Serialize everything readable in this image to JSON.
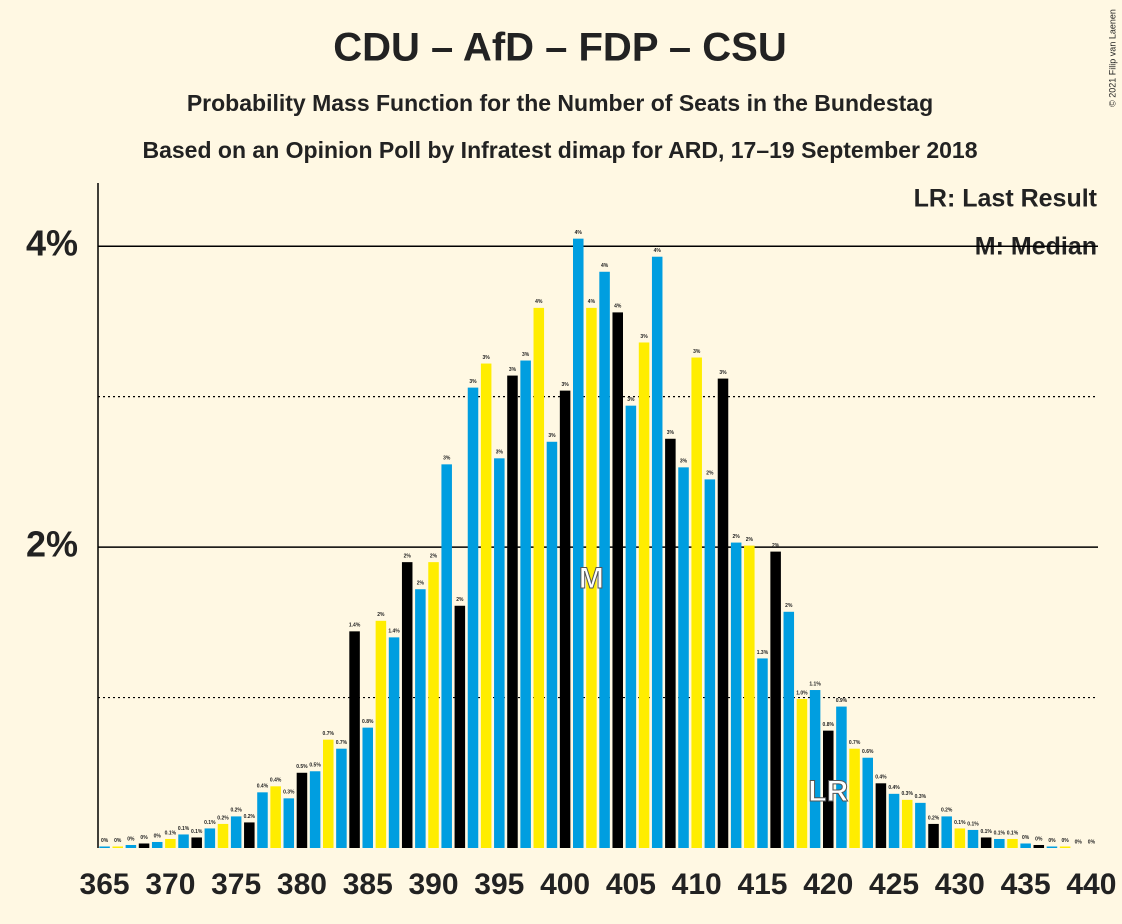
{
  "chart_data": {
    "type": "bar",
    "title": "CDU – AfD – FDP – CSU",
    "subtitle": "Probability Mass Function for the Number of Seats in the Bundestag",
    "subtitle2": "Based on an Opinion Poll by Infratest dimap for ARD, 17–19 September 2018",
    "copyright": "© 2021 Filip van Laenen",
    "legend_notes": [
      "LR: Last Result",
      "M: Median"
    ],
    "annotations": [
      {
        "text": "M",
        "x": 402
      },
      {
        "text": "LR",
        "x": 420
      }
    ],
    "x": [
      365,
      366,
      367,
      368,
      369,
      370,
      371,
      372,
      373,
      374,
      375,
      376,
      377,
      378,
      379,
      380,
      381,
      382,
      383,
      384,
      385,
      386,
      387,
      388,
      389,
      390,
      391,
      392,
      393,
      394,
      395,
      396,
      397,
      398,
      399,
      400,
      401,
      402,
      403,
      404,
      405,
      406,
      407,
      408,
      409,
      410,
      411,
      412,
      413,
      414,
      415,
      416,
      417,
      418,
      419,
      420,
      421,
      422,
      423,
      424,
      425,
      426,
      427,
      428,
      429,
      430,
      431,
      432,
      433,
      434,
      435,
      436,
      437,
      438,
      439,
      440
    ],
    "values": [
      0.01,
      0.01,
      0.02,
      0.03,
      0.04,
      0.06,
      0.09,
      0.07,
      0.13,
      0.16,
      0.21,
      0.17,
      0.37,
      0.41,
      0.33,
      0.5,
      0.51,
      0.72,
      0.66,
      1.44,
      0.8,
      1.51,
      1.4,
      1.9,
      1.72,
      1.9,
      2.55,
      1.61,
      3.06,
      3.22,
      2.59,
      3.14,
      3.24,
      3.59,
      2.7,
      3.04,
      4.05,
      3.59,
      3.83,
      3.56,
      2.94,
      3.36,
      3.93,
      2.72,
      2.53,
      3.26,
      2.45,
      3.12,
      2.03,
      2.01,
      1.26,
      1.97,
      1.57,
      0.99,
      1.05,
      0.78,
      0.94,
      0.66,
      0.6,
      0.43,
      0.36,
      0.32,
      0.3,
      0.16,
      0.21,
      0.13,
      0.12,
      0.07,
      0.06,
      0.06,
      0.03,
      0.02,
      0.01,
      0.01,
      0,
      0
    ],
    "value_labels": [
      "0%",
      "0%",
      "0%",
      "0%",
      "0%",
      "0.1%",
      "0.1%",
      "0.1%",
      "0.1%",
      "0.2%",
      "0.2%",
      "0.2%",
      "0.4%",
      "0.4%",
      "0.3%",
      "0.5%",
      "0.5%",
      "0.7%",
      "0.7%",
      "1.4%",
      "0.8%",
      "2%",
      "1.4%",
      "2%",
      "2%",
      "2%",
      "3%",
      "2%",
      "3%",
      "3%",
      "3%",
      "3%",
      "3%",
      "4%",
      "3%",
      "3%",
      "4%",
      "4%",
      "4%",
      "4%",
      "3%",
      "3%",
      "4%",
      "3%",
      "3%",
      "3%",
      "2%",
      "3%",
      "2%",
      "2%",
      "1.3%",
      "2%",
      "2%",
      "1.0%",
      "1.1%",
      "0.8%",
      "0.9%",
      "0.7%",
      "0.6%",
      "0.4%",
      "0.4%",
      "0.3%",
      "0.3%",
      "0.2%",
      "0.2%",
      "0.1%",
      "0.1%",
      "0.1%",
      "0.1%",
      "0.1%",
      "0%",
      "0%",
      "0%",
      "0%",
      "0%",
      "0%"
    ],
    "color_cycle": [
      "#009ee0",
      "#ffed00",
      "#009ee0",
      "#000000"
    ],
    "xlim": [
      364.5,
      440.5
    ],
    "xticks": [
      365,
      370,
      375,
      380,
      385,
      390,
      395,
      400,
      405,
      410,
      415,
      420,
      425,
      430,
      435,
      440
    ],
    "ylim": [
      0,
      4.42
    ],
    "yticks": [
      {
        "value": 2,
        "label": "2%"
      },
      {
        "value": 4,
        "label": "4%"
      }
    ],
    "minor_yticks": [
      1,
      3
    ],
    "grid": true
  }
}
